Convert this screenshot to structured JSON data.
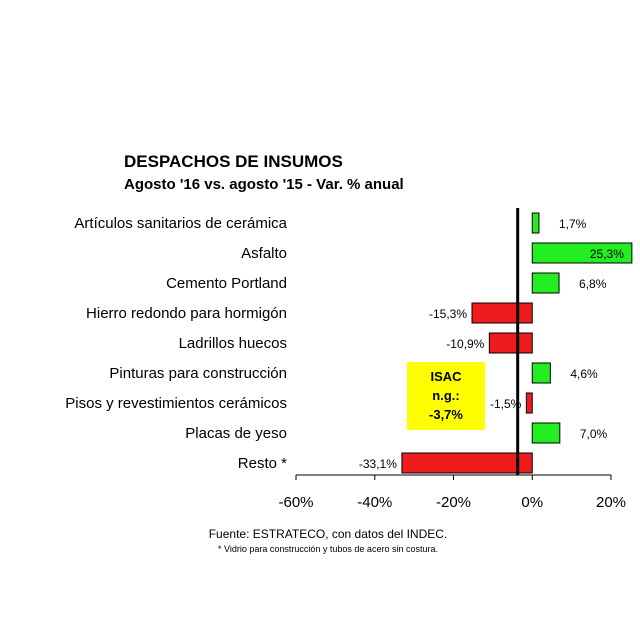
{
  "chart_data": {
    "type": "bar",
    "orientation": "horizontal",
    "title": "DESPACHOS DE INSUMOS",
    "subtitle": "Agosto '16 vs. agosto '15 - Var. % anual",
    "categories": [
      "Artículos sanitarios de cerámica",
      "Asfalto",
      "Cemento Portland",
      "Hierro redondo para hormigón",
      "Ladrillos huecos",
      "Pinturas para construcción",
      "Pisos y revestimientos cerámicos",
      "Placas de yeso",
      "Resto *"
    ],
    "values": [
      1.7,
      25.3,
      6.8,
      -15.3,
      -10.9,
      4.6,
      -1.5,
      7.0,
      -33.1
    ],
    "data_labels": [
      "1,7%",
      "25,3%",
      "6,8%",
      "-15,3%",
      "-10,9%",
      "4,6%",
      "-1,5%",
      "7,0%",
      "-33,1%"
    ],
    "xlim": [
      -60,
      20
    ],
    "x_ticks": [
      -60,
      -40,
      -20,
      0,
      20
    ],
    "x_tick_labels": [
      "-60%",
      "-40%",
      "-20%",
      "0%",
      "20%"
    ],
    "colors": {
      "positive": "#22ee22",
      "negative": "#ee1c1c",
      "isac_box": "#ffff00",
      "isac_line": "#000000"
    },
    "reference_line": {
      "value": -3.7,
      "label_lines": [
        "ISAC",
        "n.g.:",
        "-3,7%"
      ]
    },
    "grid": false,
    "legend": "none",
    "source": "Fuente: ESTRATECO, con datos del INDEC.",
    "footnote": "* Vidrio para construcción y tubos de acero sin costura."
  }
}
